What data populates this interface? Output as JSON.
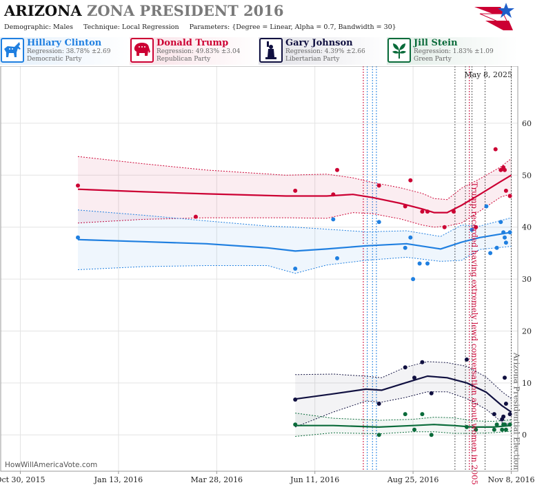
{
  "header": {
    "state": "ARIZONA",
    "title_rest": "ZONA PRESIDENT 2016",
    "demographic_label": "Demographic:",
    "demographic": "Males",
    "technique_label": "Technique:",
    "technique": "Local Regression",
    "parameters_label": "Parameters:",
    "parameters": "{Degree = Linear, Alpha = 0.7, Bandwidth = 30}",
    "logo_icon": "star-flag-logo-icon"
  },
  "candidates": [
    {
      "name": "Hillary Clinton",
      "regression": "Regression: 38.78% ±2.69",
      "party": "Democratic Party",
      "color": "#1f7fe0",
      "icon": "donkey-icon"
    },
    {
      "name": "Donald Trump",
      "regression": "Regression: 49.83% ±3.04",
      "party": "Republican Party",
      "color": "#cc0033",
      "icon": "elephant-icon"
    },
    {
      "name": "Gary Johnson",
      "regression": "Regression: 4.39% ±2.66",
      "party": "Libertarian Party",
      "color": "#101040",
      "icon": "statue-of-liberty-icon"
    },
    {
      "name": "Jill Stein",
      "regression": "Regression: 1.83% ±1.09",
      "party": "Green Party",
      "color": "#0a6b3a",
      "icon": "leaf-icon"
    }
  ],
  "chart_data": {
    "type": "line",
    "date_stamp": "May 8, 2025",
    "credit": "HowWillAmericaVote.com",
    "x_ticks": [
      {
        "label": "Oct 30, 2015",
        "date": "2015-10-30"
      },
      {
        "label": "Jan 13, 2016",
        "date": "2016-01-13"
      },
      {
        "label": "Mar 28, 2016",
        "date": "2016-03-28"
      },
      {
        "label": "Jun 11, 2016",
        "date": "2016-06-11"
      },
      {
        "label": "Aug 25, 2016",
        "date": "2016-08-25"
      },
      {
        "label": "Nov 8, 2016",
        "date": "2016-11-08"
      }
    ],
    "x_range": [
      "2015-10-15",
      "2016-11-13"
    ],
    "y_ticks": [
      0,
      10,
      20,
      30,
      40,
      50,
      60
    ],
    "ylim": [
      -7,
      71
    ],
    "grid": true,
    "annotations": [
      {
        "text": "Trump recorded having extremely lewd conversation about women in 2005",
        "date": "2016-10-07",
        "color": "#cc0033"
      },
      {
        "text": "Arizona Presidential Election",
        "date": "2016-11-08",
        "color": "#555555"
      }
    ],
    "vlines": [
      {
        "date": "2016-07-18",
        "color": "#cc0033"
      },
      {
        "date": "2016-07-21",
        "color": "#1f7fe0"
      },
      {
        "date": "2016-07-25",
        "color": "#1f7fe0"
      },
      {
        "date": "2016-07-28",
        "color": "#1f7fe0"
      },
      {
        "date": "2016-09-26",
        "color": "#555555"
      },
      {
        "date": "2016-10-04",
        "color": "#555555"
      },
      {
        "date": "2016-10-07",
        "color": "#cc0033"
      },
      {
        "date": "2016-10-09",
        "color": "#555555"
      },
      {
        "date": "2016-10-19",
        "color": "#555555"
      },
      {
        "date": "2016-11-08",
        "color": "#555555"
      }
    ],
    "series": [
      {
        "name": "Donald Trump",
        "color": "#cc0033",
        "band_color": "rgba(204,0,51,0.07)",
        "fit": [
          [
            "2015-12-13",
            47.3
          ],
          [
            "2016-02-01",
            46.8
          ],
          [
            "2016-03-20",
            46.4
          ],
          [
            "2016-05-20",
            46.0
          ],
          [
            "2016-06-20",
            46.0
          ],
          [
            "2016-07-10",
            46.3
          ],
          [
            "2016-07-25",
            45.7
          ],
          [
            "2016-08-15",
            44.6
          ],
          [
            "2016-09-01",
            43.5
          ],
          [
            "2016-09-10",
            42.8
          ],
          [
            "2016-09-20",
            42.8
          ],
          [
            "2016-10-01",
            44.2
          ],
          [
            "2016-10-15",
            46.3
          ],
          [
            "2016-10-31",
            48.8
          ],
          [
            "2016-11-08",
            50.0
          ]
        ],
        "upper": [
          [
            "2015-12-13",
            53.6
          ],
          [
            "2016-02-01",
            52.2
          ],
          [
            "2016-03-20",
            51.0
          ],
          [
            "2016-05-20",
            50.0
          ],
          [
            "2016-06-20",
            50.2
          ],
          [
            "2016-07-10",
            49.5
          ],
          [
            "2016-07-25",
            48.6
          ],
          [
            "2016-08-15",
            47.6
          ],
          [
            "2016-09-01",
            46.5
          ],
          [
            "2016-09-10",
            45.5
          ],
          [
            "2016-09-20",
            45.3
          ],
          [
            "2016-10-01",
            47.5
          ],
          [
            "2016-10-15",
            49.3
          ],
          [
            "2016-10-31",
            51.6
          ],
          [
            "2016-11-08",
            53.2
          ]
        ],
        "lower": [
          [
            "2015-12-13",
            40.8
          ],
          [
            "2016-02-01",
            41.5
          ],
          [
            "2016-03-20",
            41.8
          ],
          [
            "2016-05-20",
            41.8
          ],
          [
            "2016-06-20",
            41.7
          ],
          [
            "2016-07-10",
            42.8
          ],
          [
            "2016-07-25",
            42.6
          ],
          [
            "2016-08-15",
            41.6
          ],
          [
            "2016-09-01",
            40.4
          ],
          [
            "2016-09-10",
            40.0
          ],
          [
            "2016-09-20",
            40.2
          ],
          [
            "2016-10-01",
            40.8
          ],
          [
            "2016-10-15",
            43.1
          ],
          [
            "2016-10-31",
            45.8
          ],
          [
            "2016-11-08",
            46.4
          ]
        ],
        "points": [
          [
            "2015-12-13",
            48
          ],
          [
            "2016-03-12",
            42
          ],
          [
            "2016-05-27",
            47
          ],
          [
            "2016-06-25",
            46.3
          ],
          [
            "2016-06-28",
            51
          ],
          [
            "2016-07-30",
            48
          ],
          [
            "2016-08-19",
            44
          ],
          [
            "2016-08-23",
            49
          ],
          [
            "2016-09-01",
            43
          ],
          [
            "2016-09-05",
            43
          ],
          [
            "2016-09-18",
            40
          ],
          [
            "2016-09-25",
            43
          ],
          [
            "2016-10-12",
            40
          ],
          [
            "2016-10-27",
            55
          ],
          [
            "2016-10-31",
            51
          ],
          [
            "2016-11-02",
            51.5
          ],
          [
            "2016-11-03",
            51
          ],
          [
            "2016-11-04",
            47
          ],
          [
            "2016-11-07",
            46
          ]
        ]
      },
      {
        "name": "Hillary Clinton",
        "color": "#1f7fe0",
        "band_color": "rgba(31,127,224,0.07)",
        "fit": [
          [
            "2015-12-13",
            37.6
          ],
          [
            "2016-02-01",
            37.2
          ],
          [
            "2016-03-20",
            36.8
          ],
          [
            "2016-05-06",
            36.0
          ],
          [
            "2016-05-27",
            35.4
          ],
          [
            "2016-06-20",
            35.8
          ],
          [
            "2016-07-20",
            36.4
          ],
          [
            "2016-08-20",
            36.8
          ],
          [
            "2016-09-15",
            35.8
          ],
          [
            "2016-10-01",
            37.1
          ],
          [
            "2016-10-15",
            38.0
          ],
          [
            "2016-11-08",
            39.0
          ]
        ],
        "upper": [
          [
            "2015-12-13",
            43.3
          ],
          [
            "2016-02-01",
            42.3
          ],
          [
            "2016-03-20",
            41.2
          ],
          [
            "2016-05-06",
            40.2
          ],
          [
            "2016-05-27",
            40.0
          ],
          [
            "2016-06-20",
            39.6
          ],
          [
            "2016-07-20",
            39.1
          ],
          [
            "2016-08-20",
            39.3
          ],
          [
            "2016-09-15",
            38.2
          ],
          [
            "2016-10-01",
            40.4
          ],
          [
            "2016-10-15",
            40.2
          ],
          [
            "2016-11-08",
            41.8
          ]
        ],
        "lower": [
          [
            "2015-12-13",
            31.8
          ],
          [
            "2016-02-01",
            32.4
          ],
          [
            "2016-03-20",
            32.6
          ],
          [
            "2016-05-06",
            32.6
          ],
          [
            "2016-05-27",
            31.1
          ],
          [
            "2016-06-20",
            32.7
          ],
          [
            "2016-07-20",
            33.6
          ],
          [
            "2016-08-20",
            34.2
          ],
          [
            "2016-09-15",
            33.4
          ],
          [
            "2016-10-01",
            33.6
          ],
          [
            "2016-10-15",
            35.7
          ],
          [
            "2016-11-08",
            36.3
          ]
        ],
        "points": [
          [
            "2015-12-13",
            38
          ],
          [
            "2016-05-27",
            32
          ],
          [
            "2016-06-25",
            41.5
          ],
          [
            "2016-06-28",
            34
          ],
          [
            "2016-07-30",
            41
          ],
          [
            "2016-08-19",
            36
          ],
          [
            "2016-08-23",
            38
          ],
          [
            "2016-08-25",
            30
          ],
          [
            "2016-08-30",
            33
          ],
          [
            "2016-09-05",
            33
          ],
          [
            "2016-10-09",
            39.5
          ],
          [
            "2016-10-20",
            44
          ],
          [
            "2016-10-23",
            35
          ],
          [
            "2016-10-28",
            36
          ],
          [
            "2016-10-31",
            41
          ],
          [
            "2016-11-02",
            39
          ],
          [
            "2016-11-03",
            38
          ],
          [
            "2016-11-04",
            37
          ],
          [
            "2016-11-07",
            39
          ]
        ]
      },
      {
        "name": "Gary Johnson",
        "color": "#101040",
        "band_color": "rgba(16,16,64,0.05)",
        "fit": [
          [
            "2016-05-27",
            6.9
          ],
          [
            "2016-06-25",
            7.9
          ],
          [
            "2016-07-20",
            8.8
          ],
          [
            "2016-08-01",
            8.6
          ],
          [
            "2016-08-19",
            10.0
          ],
          [
            "2016-09-05",
            11.3
          ],
          [
            "2016-09-20",
            11.0
          ],
          [
            "2016-10-05",
            10.0
          ],
          [
            "2016-10-20",
            8.2
          ],
          [
            "2016-11-01",
            5.6
          ],
          [
            "2016-11-08",
            4.4
          ]
        ],
        "upper": [
          [
            "2016-05-27",
            11.6
          ],
          [
            "2016-06-25",
            11.7
          ],
          [
            "2016-07-20",
            11.3
          ],
          [
            "2016-08-01",
            11.0
          ],
          [
            "2016-08-19",
            13.0
          ],
          [
            "2016-09-05",
            14.1
          ],
          [
            "2016-09-20",
            13.9
          ],
          [
            "2016-10-05",
            13.2
          ],
          [
            "2016-10-20",
            11.1
          ],
          [
            "2016-11-01",
            8.3
          ],
          [
            "2016-11-08",
            7.0
          ]
        ],
        "lower": [
          [
            "2016-05-27",
            1.5
          ],
          [
            "2016-06-25",
            4.4
          ],
          [
            "2016-07-20",
            6.5
          ],
          [
            "2016-08-01",
            6.3
          ],
          [
            "2016-08-19",
            7.2
          ],
          [
            "2016-09-05",
            8.3
          ],
          [
            "2016-09-20",
            8.3
          ],
          [
            "2016-10-05",
            7.0
          ],
          [
            "2016-10-20",
            4.9
          ],
          [
            "2016-11-01",
            2.4
          ],
          [
            "2016-11-08",
            1.8
          ]
        ],
        "points": [
          [
            "2016-05-27",
            6.8
          ],
          [
            "2016-07-30",
            6
          ],
          [
            "2016-08-19",
            13
          ],
          [
            "2016-08-26",
            11
          ],
          [
            "2016-09-01",
            14
          ],
          [
            "2016-09-08",
            8
          ],
          [
            "2016-10-05",
            14.5
          ],
          [
            "2016-10-26",
            4
          ],
          [
            "2016-11-01",
            3
          ],
          [
            "2016-11-02",
            3.5
          ],
          [
            "2016-11-03",
            11
          ],
          [
            "2016-11-04",
            6
          ],
          [
            "2016-11-07",
            4
          ]
        ]
      },
      {
        "name": "Jill Stein",
        "color": "#0a6b3a",
        "band_color": "rgba(10,107,58,0.05)",
        "fit": [
          [
            "2016-05-27",
            1.8
          ],
          [
            "2016-06-25",
            1.8
          ],
          [
            "2016-07-30",
            1.5
          ],
          [
            "2016-08-25",
            1.8
          ],
          [
            "2016-09-10",
            2.0
          ],
          [
            "2016-09-25",
            1.8
          ],
          [
            "2016-10-10",
            1.5
          ],
          [
            "2016-10-25",
            1.5
          ],
          [
            "2016-11-08",
            1.8
          ]
        ],
        "upper": [
          [
            "2016-05-27",
            4.2
          ],
          [
            "2016-06-25",
            3.2
          ],
          [
            "2016-07-30",
            2.8
          ],
          [
            "2016-08-25",
            3.0
          ],
          [
            "2016-09-10",
            3.4
          ],
          [
            "2016-09-25",
            3.3
          ],
          [
            "2016-10-10",
            2.7
          ],
          [
            "2016-10-25",
            2.6
          ],
          [
            "2016-11-08",
            2.9
          ]
        ],
        "lower": [
          [
            "2016-05-27",
            -0.3
          ],
          [
            "2016-06-25",
            0.4
          ],
          [
            "2016-07-30",
            0.2
          ],
          [
            "2016-08-25",
            0.6
          ],
          [
            "2016-09-10",
            0.6
          ],
          [
            "2016-09-25",
            0.3
          ],
          [
            "2016-10-10",
            0.3
          ],
          [
            "2016-10-25",
            0.4
          ],
          [
            "2016-11-08",
            0.7
          ]
        ],
        "points": [
          [
            "2016-05-27",
            2
          ],
          [
            "2016-07-30",
            0
          ],
          [
            "2016-08-19",
            4
          ],
          [
            "2016-08-26",
            1
          ],
          [
            "2016-09-01",
            4
          ],
          [
            "2016-09-08",
            0
          ],
          [
            "2016-10-05",
            1.5
          ],
          [
            "2016-10-12",
            1
          ],
          [
            "2016-10-26",
            1
          ],
          [
            "2016-10-28",
            2
          ],
          [
            "2016-11-01",
            1
          ],
          [
            "2016-11-02",
            2
          ],
          [
            "2016-11-03",
            2
          ],
          [
            "2016-11-04",
            1
          ],
          [
            "2016-11-07",
            2
          ]
        ]
      }
    ]
  }
}
